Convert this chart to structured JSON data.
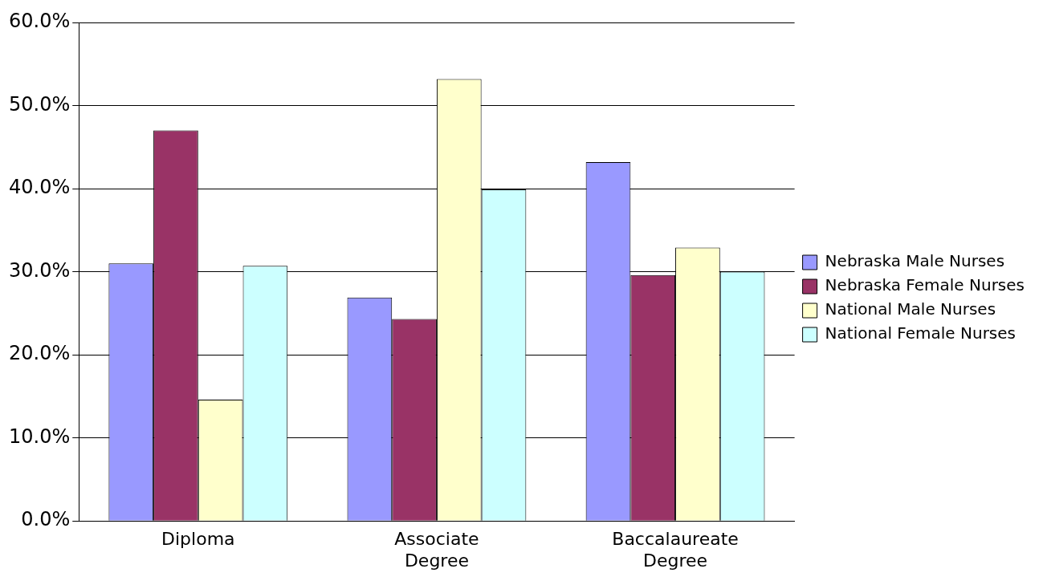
{
  "chart_data": {
    "type": "bar",
    "categories": [
      "Diploma",
      "Associate Degree",
      "Baccalaureate Degree"
    ],
    "series": [
      {
        "name": "Nebraska Male Nurses",
        "color": "#9999ff",
        "values": [
          31,
          26.9,
          43.2
        ]
      },
      {
        "name": "Nebraska Female Nurses",
        "color": "#993366",
        "values": [
          47,
          24.3,
          29.6
        ]
      },
      {
        "name": "National Male Nurses",
        "color": "#ffffcc",
        "values": [
          14.6,
          53.2,
          32.9
        ]
      },
      {
        "name": "National Female Nurses",
        "color": "#ccffff",
        "values": [
          30.7,
          39.9,
          30
        ]
      }
    ],
    "ylim": [
      0,
      60
    ],
    "yticks": [
      {
        "value": 0,
        "label": "0.0%"
      },
      {
        "value": 10,
        "label": "10.0%"
      },
      {
        "value": 20,
        "label": "20.0%"
      },
      {
        "value": 30,
        "label": "30.0%"
      },
      {
        "value": 40,
        "label": "40.0%"
      },
      {
        "value": 50,
        "label": "50.0%"
      },
      {
        "value": 60,
        "label": "60.0%"
      }
    ],
    "grid": "y",
    "legend": "right"
  }
}
